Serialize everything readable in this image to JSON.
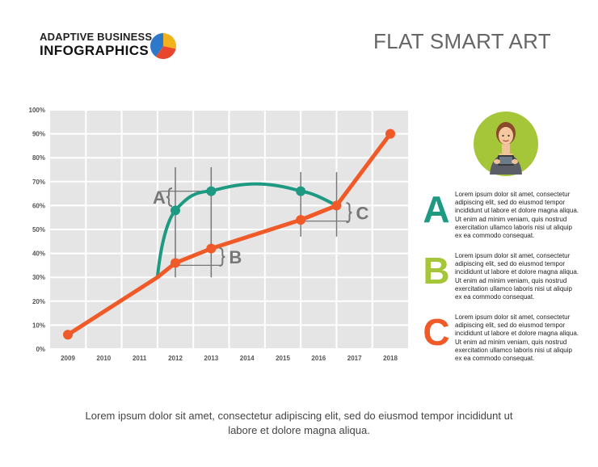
{
  "header": {
    "brand_line1": "ADAPTIVE BUSINESS",
    "brand_line2": "INFOGRAPHICS",
    "title": "FLAT SMART ART"
  },
  "icons": {
    "brand": "pie-chart-icon",
    "avatar": "woman-with-tablet-icon"
  },
  "colors": {
    "orange": "#f05a28",
    "teal": "#1e9a83",
    "lime": "#a6c63a",
    "grid_bg": "#e5e5e5",
    "gray": "#777777"
  },
  "chart_data": {
    "type": "line",
    "categories": [
      "2009",
      "2010",
      "2011",
      "2012",
      "2013",
      "2014",
      "2015",
      "2016",
      "2017",
      "2018"
    ],
    "y_ticks": [
      "0%",
      "10%",
      "20%",
      "30%",
      "40%",
      "50%",
      "60%",
      "70%",
      "80%",
      "90%",
      "100%"
    ],
    "ylim": [
      0,
      100
    ],
    "grid": true,
    "series": [
      {
        "color": "#f05a28",
        "x": [
          2009,
          2011.5,
          2012,
          2013,
          2015.5,
          2016.5,
          2018
        ],
        "values": [
          6,
          30,
          36,
          42,
          54,
          60,
          90
        ],
        "markers": [
          true,
          false,
          true,
          true,
          true,
          true,
          true
        ]
      },
      {
        "color": "#1e9a83",
        "x": [
          2011.5,
          2012,
          2013,
          2015.5,
          2016.5
        ],
        "values": [
          30,
          58,
          66,
          66,
          60
        ],
        "markers": [
          false,
          true,
          true,
          true,
          false
        ]
      }
    ],
    "annotations": [
      {
        "label": "A",
        "x": 2012,
        "from": 36,
        "to": 58,
        "side": "left"
      },
      {
        "label": "B",
        "x": 2013,
        "from": 36,
        "to": 42,
        "side": "right"
      },
      {
        "label": "C",
        "x": 2016.5,
        "from": 54,
        "to": 60,
        "side": "right"
      }
    ]
  },
  "legend": [
    {
      "letter": "A",
      "color": "#1e9a83",
      "text": "Lorem ipsum dolor sit amet, consectetur adipiscing elit, sed do eiusmod tempor incididunt ut labore et dolore magna aliqua. Ut enim ad minim veniam, quis nostrud exercitation ullamco laboris nisi ut aliquip ex ea commodo consequat."
    },
    {
      "letter": "B",
      "color": "#a6c63a",
      "text": "Lorem ipsum dolor sit amet, consectetur adipiscing elit, sed do eiusmod tempor incididunt ut labore et dolore magna aliqua. Ut enim ad minim veniam, quis nostrud exercitation ullamco laboris nisi ut aliquip ex ea commodo consequat."
    },
    {
      "letter": "C",
      "color": "#f05a28",
      "text": "Lorem ipsum dolor sit amet, consectetur adipiscing elit, sed do eiusmod tempor incididunt ut labore et dolore magna aliqua. Ut enim ad minim veniam, quis nostrud exercitation ullamco laboris nisi ut aliquip ex ea commodo consequat."
    }
  ],
  "footer": {
    "caption": "Lorem ipsum dolor sit amet, consectetur adipiscing elit, sed do eiusmod tempor incididunt ut labore et dolore magna aliqua."
  }
}
